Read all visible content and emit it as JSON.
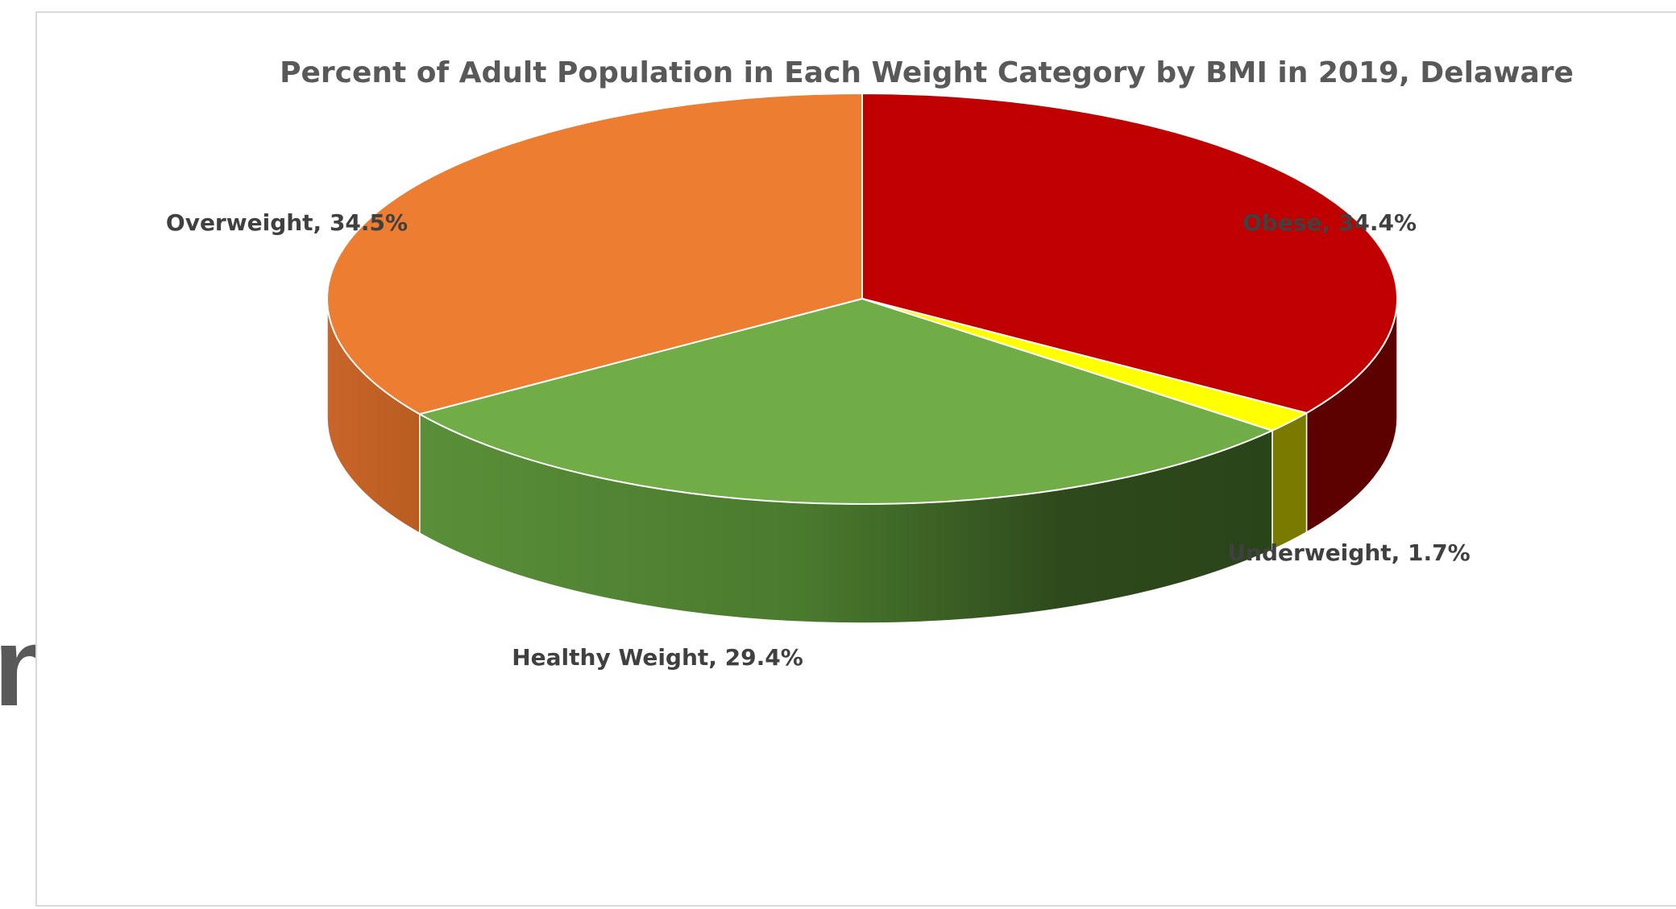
{
  "stray_text": "n",
  "chart_data": {
    "type": "pie",
    "title": "Percent of Adult Population in Each Weight Category by BMI in 2019, Delaware",
    "slices": [
      {
        "label": "Obese",
        "value": 34.4,
        "display": "Obese, 34.4%",
        "color": "#c00000",
        "side_color": "#5c0000"
      },
      {
        "label": "Underweight",
        "value": 1.7,
        "display": "Underweight, 1.7%",
        "color": "#ffff00",
        "side_color": "#7a7a00"
      },
      {
        "label": "Healthy Weight",
        "value": 29.4,
        "display": "Healthy Weight, 29.4%",
        "color": "#70ad47",
        "side_color": "#3d6b28"
      },
      {
        "label": "Overweight",
        "value": 34.5,
        "display": "Overweight, 34.5%",
        "color": "#ed7d31",
        "side_color": "#b85d20"
      }
    ],
    "start_angle_deg": 0,
    "direction": "clockwise",
    "style": "3d-pie",
    "legend": "none",
    "data_labels": "outside"
  }
}
